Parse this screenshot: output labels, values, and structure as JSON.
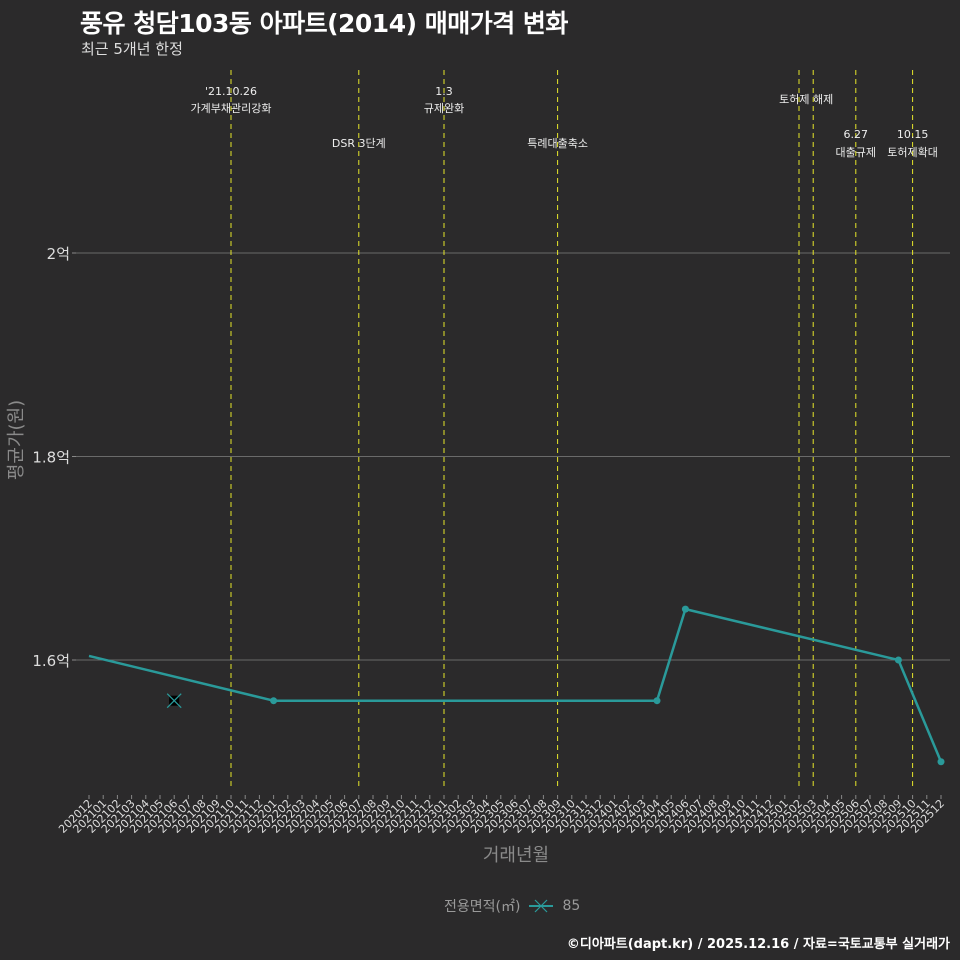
{
  "header": {
    "title": "풍유 청담103동 아파트(2014) 매매가격 변화",
    "subtitle": "최근 5개년 한정"
  },
  "footer": {
    "credit": "©디아파트(dapt.kr) / 2025.12.16 / 자료=국토교통부 실거래가"
  },
  "legend": {
    "title": "전용면적(㎡)",
    "items": [
      {
        "label": "85",
        "color": "#2a9a9a"
      }
    ]
  },
  "colors": {
    "background": "#2b2a2b",
    "line": "#2a9a9a",
    "event_line": "#e6e62a",
    "grid": "#6a6a6a"
  },
  "chart_data": {
    "type": "line",
    "title": "풍유 청담103동 아파트(2014) 매매가격 변화",
    "subtitle": "최근 5개년 한정",
    "xlabel": "거래년월",
    "ylabel": "평균가(원)",
    "ylim": [
      1.48,
      2.1
    ],
    "yticks": [
      {
        "value": 1.6,
        "label": "1.6억"
      },
      {
        "value": 1.8,
        "label": "1.8억"
      },
      {
        "value": 2.0,
        "label": "2억"
      }
    ],
    "grid": true,
    "legend_position": "bottom",
    "categories": [
      "202012",
      "202101",
      "202102",
      "202103",
      "202104",
      "202105",
      "202106",
      "202107",
      "202108",
      "202109",
      "202110",
      "202111",
      "202112",
      "202201",
      "202202",
      "202203",
      "202204",
      "202205",
      "202206",
      "202207",
      "202208",
      "202209",
      "202210",
      "202211",
      "202212",
      "202301",
      "202302",
      "202303",
      "202304",
      "202305",
      "202306",
      "202307",
      "202308",
      "202309",
      "202310",
      "202311",
      "202312",
      "202401",
      "202402",
      "202403",
      "202404",
      "202405",
      "202406",
      "202407",
      "202408",
      "202409",
      "202410",
      "202411",
      "202412",
      "202501",
      "202502",
      "202503",
      "202504",
      "202505",
      "202506",
      "202507",
      "202508",
      "202509",
      "202510",
      "202511",
      "202512"
    ],
    "series": [
      {
        "name": "85",
        "points": [
          {
            "x": "202012",
            "y": 1.604
          },
          {
            "x": "202201",
            "y": 1.56
          },
          {
            "x": "202404",
            "y": 1.56
          },
          {
            "x": "202406",
            "y": 1.65
          },
          {
            "x": "202509",
            "y": 1.6
          },
          {
            "x": "202512",
            "y": 1.5
          }
        ]
      }
    ],
    "markers": [
      {
        "x": "202106",
        "y": 1.56,
        "shape": "x",
        "series": "85"
      }
    ],
    "events": [
      {
        "x": "202110",
        "label_line1": "'21.10.26",
        "label_line2": "가계부채관리강화",
        "row": 0
      },
      {
        "x": "202207",
        "label_line1": "",
        "label_line2": "DSR 3단계",
        "row": 2
      },
      {
        "x": "202301",
        "label_line1": "1.3",
        "label_line2": "규제완화",
        "row": 0
      },
      {
        "x": "202309",
        "label_line1": "",
        "label_line2": "특례대출축소",
        "row": 2
      },
      {
        "x": "202502",
        "label_line1": "",
        "label_line2": "",
        "row": 0
      },
      {
        "x": "202503",
        "label_line1": "",
        "label_line2": "토허제 해제",
        "row": 1
      },
      {
        "x": "202506",
        "label_line1": "6.27",
        "label_line2": "대출규제",
        "row": 3
      },
      {
        "x": "202510",
        "label_line1": "10.15",
        "label_line2": "토허제확대",
        "row": 3
      }
    ]
  }
}
